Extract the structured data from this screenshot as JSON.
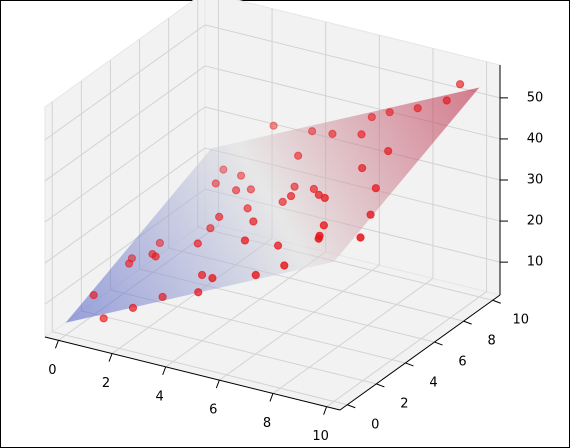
{
  "chart_data": {
    "type": "scatter3d",
    "x": [
      0.5,
      1.2,
      2.0,
      0.8,
      1.5,
      2.8,
      3.1,
      2.2,
      3.5,
      4.0,
      4.6,
      1.0,
      2.6,
      3.8,
      4.4,
      5.1,
      5.5,
      6.0,
      5.2,
      6.4,
      7.0,
      7.5,
      6.8,
      8.0,
      8.5,
      9.0,
      9.5,
      8.8,
      9.8,
      7.2,
      6.1,
      5.8,
      4.9,
      3.3,
      2.4,
      1.8,
      0.3,
      7.8,
      8.3,
      9.2,
      4.2,
      5.6,
      6.6,
      3.0,
      9.6,
      0.9,
      2.9,
      7.6,
      5.0,
      8.6
    ],
    "y": [
      1.0,
      0.4,
      2.5,
      5.0,
      3.2,
      1.5,
      6.0,
      8.0,
      4.1,
      2.0,
      7.5,
      9.0,
      9.5,
      5.5,
      1.0,
      3.5,
      8.2,
      6.0,
      0.5,
      2.8,
      4.5,
      1.2,
      7.8,
      3.0,
      6.5,
      0.8,
      9.6,
      5.1,
      2.2,
      9.0,
      9.8,
      4.8,
      6.7,
      3.0,
      0.2,
      7.0,
      4.0,
      6.0,
      8.9,
      4.0,
      9.2,
      2.0,
      0.9,
      7.2,
      8.5,
      2.7,
      4.6,
      3.8,
      5.7,
      1.6
    ],
    "z": [
      10,
      7,
      18,
      13,
      16,
      12,
      27,
      24,
      26,
      18,
      34,
      21,
      33,
      25,
      17,
      29,
      39,
      32,
      23,
      27,
      36,
      28,
      42,
      34,
      44,
      38,
      54,
      39,
      36,
      45,
      40,
      33,
      29,
      22,
      12,
      24,
      11,
      40,
      48,
      36,
      35,
      29,
      25,
      24,
      53,
      14,
      21,
      38,
      28,
      36
    ],
    "color": "#e8161b",
    "xlim": [
      -0.5,
      10.5
    ],
    "ylim": [
      -0.5,
      10.5
    ],
    "zlim": [
      2,
      58
    ],
    "xticks": [
      0,
      2,
      4,
      6,
      8,
      10
    ],
    "yticks": [
      0,
      2,
      4,
      6,
      8,
      10
    ],
    "zticks": [
      10,
      20,
      30,
      40,
      50
    ],
    "grid": true,
    "surface": {
      "x": [
        0,
        10
      ],
      "y": [
        0,
        10
      ],
      "z": [
        [
          5,
          22
        ],
        [
          36,
          53
        ]
      ],
      "colormap": "coolwarm"
    }
  }
}
